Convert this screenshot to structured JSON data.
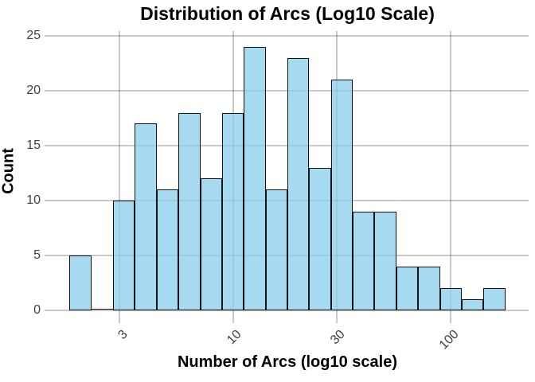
{
  "colors": {
    "background": "#ffffff",
    "bar_fill_rgb": "135,206,235",
    "bar_fill_alpha": 0.75,
    "bar_edge": "#111111",
    "grid": "rgba(0,0,0,0.21)",
    "tick_text": "#3f3f3f",
    "label_text": "#000000"
  },
  "chart_data": {
    "type": "bar",
    "subtype": "histogram",
    "title": "Distribution of Arcs (Log10 Scale)",
    "xlabel": "Number of Arcs (log10 scale)",
    "ylabel": "Count",
    "x_scale": "log10",
    "grid": "on",
    "legend": "none",
    "bin_width_log10": 0.1,
    "bin_edges_log10": [
      0.25,
      0.35,
      0.45,
      0.55,
      0.65,
      0.75,
      0.85,
      0.95,
      1.05,
      1.15,
      1.25,
      1.35,
      1.45,
      1.55,
      1.65,
      1.75,
      1.85,
      1.95,
      2.05,
      2.15,
      2.25
    ],
    "counts": [
      5,
      0,
      10,
      17,
      11,
      18,
      12,
      18,
      24,
      11,
      23,
      13,
      21,
      9,
      9,
      4,
      4,
      2,
      1,
      2
    ],
    "x_tick_values": [
      3,
      10,
      30,
      100
    ],
    "x_tick_labels": [
      "3",
      "10",
      "30",
      "100"
    ],
    "y_tick_values": [
      0,
      5,
      10,
      15,
      20,
      25
    ],
    "y_tick_labels": [
      "0",
      "5",
      "10",
      "15",
      "20",
      "25"
    ],
    "xlim_log10": [
      0.157,
      2.357
    ],
    "ylim": [
      0,
      25.5
    ],
    "x_tick_rotation_deg": 45
  }
}
